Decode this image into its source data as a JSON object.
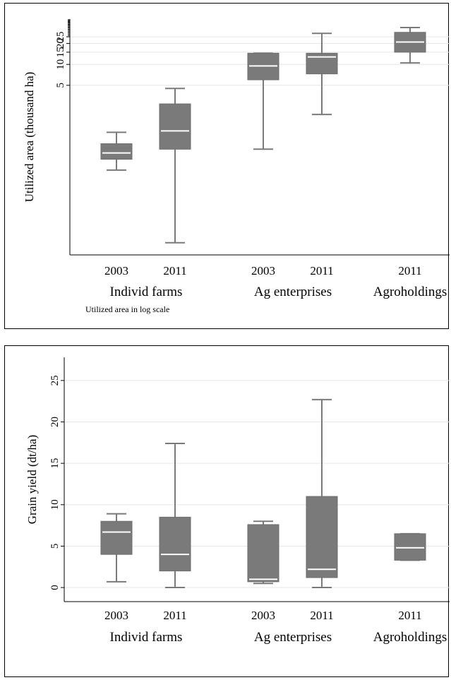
{
  "chart_data": [
    {
      "type": "box",
      "ylabel": "Utilized area (thousand ha)",
      "yscale": "log",
      "ytick_labels": [
        "5",
        "10",
        "15",
        "20",
        "25"
      ],
      "yticks": [
        5,
        10,
        15,
        20,
        25
      ],
      "ylim": [
        0.018,
        45
      ],
      "grid": true,
      "note": "Utilized area in log scale",
      "groups": [
        {
          "label": "Individ farms",
          "years": [
            "2003",
            "2011"
          ]
        },
        {
          "label": "Ag enterprises",
          "years": [
            "2003",
            "2011"
          ]
        },
        {
          "label": "Agroholdings",
          "years": [
            "2011"
          ]
        }
      ],
      "boxes": [
        {
          "group": "Individ farms",
          "year": "2003",
          "whisker_low": 0.3,
          "q1": 0.43,
          "median": 0.53,
          "q3": 0.72,
          "whisker_high": 1.05
        },
        {
          "group": "Individ farms",
          "year": "2011",
          "whisker_low": 0.027,
          "q1": 0.6,
          "median": 1.1,
          "q3": 2.7,
          "whisker_high": 4.5
        },
        {
          "group": "Ag enterprises",
          "year": "2003",
          "whisker_low": 0.6,
          "q1": 6,
          "median": 9.5,
          "q3": 14.5,
          "whisker_high": 14.5
        },
        {
          "group": "Ag enterprises",
          "year": "2011",
          "whisker_low": 1.9,
          "q1": 7.3,
          "median": 12.8,
          "q3": 14.5,
          "whisker_high": 28
        },
        {
          "group": "Agroholdings",
          "year": "2011",
          "whisker_low": 10.5,
          "q1": 15,
          "median": 21,
          "q3": 29,
          "whisker_high": 34
        }
      ]
    },
    {
      "type": "box",
      "ylabel": "Grain yield (dt/ha)",
      "yscale": "linear",
      "ytick_labels": [
        "0",
        "5",
        "10",
        "15",
        "20",
        "25"
      ],
      "yticks": [
        0,
        5,
        10,
        15,
        20,
        25
      ],
      "ylim": [
        -1.7,
        27.8
      ],
      "grid": true,
      "groups": [
        {
          "label": "Individ farms",
          "years": [
            "2003",
            "2011"
          ]
        },
        {
          "label": "Ag enterprises",
          "years": [
            "2003",
            "2011"
          ]
        },
        {
          "label": "Agroholdings",
          "years": [
            "2011"
          ]
        }
      ],
      "boxes": [
        {
          "group": "Individ farms",
          "year": "2003",
          "whisker_low": 0.7,
          "q1": 4,
          "median": 6.7,
          "q3": 8,
          "whisker_high": 8.9
        },
        {
          "group": "Individ farms",
          "year": "2011",
          "whisker_low": 0,
          "q1": 2,
          "median": 4,
          "q3": 8.5,
          "whisker_high": 17.4
        },
        {
          "group": "Ag enterprises",
          "year": "2003",
          "whisker_low": 0.5,
          "q1": 0.7,
          "median": 1,
          "q3": 7.6,
          "whisker_high": 8
        },
        {
          "group": "Ag enterprises",
          "year": "2011",
          "whisker_low": 0,
          "q1": 1.2,
          "median": 2.2,
          "q3": 11,
          "whisker_high": 22.7
        },
        {
          "group": "Agroholdings",
          "year": "2011",
          "whisker_low": 3.3,
          "q1": 3.3,
          "median": 4.8,
          "q3": 6.5,
          "whisker_high": 6.5
        }
      ]
    }
  ],
  "colors": {
    "box": "#7a7a7a",
    "whisker": "#7a7a7a",
    "median": "#ffffff",
    "grid": "#e6e6e6",
    "axis": "#000000",
    "frame": "#000000"
  }
}
